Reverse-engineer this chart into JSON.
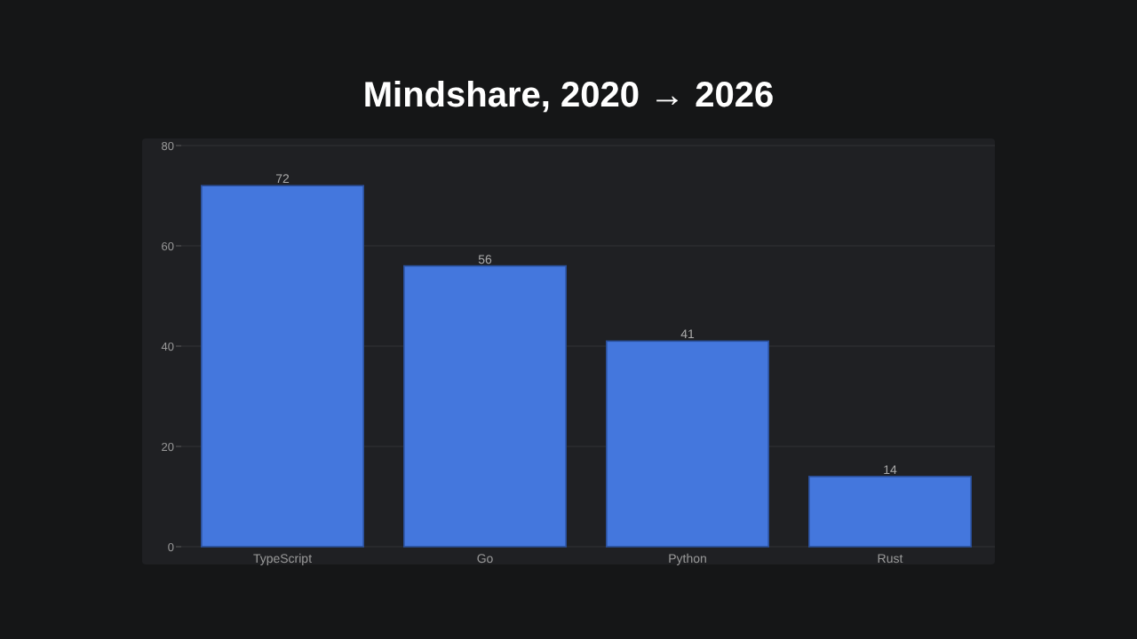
{
  "chart_data": {
    "type": "bar",
    "title": "Mindshare, 2020 → 2026",
    "categories": [
      "TypeScript",
      "Go",
      "Python",
      "Rust"
    ],
    "values": [
      72,
      56,
      41,
      14
    ],
    "color": "#4477dd",
    "ylim": [
      0,
      80
    ],
    "yticks": [
      0,
      20,
      40,
      60,
      80
    ],
    "grid": "y",
    "data_labels": true
  }
}
